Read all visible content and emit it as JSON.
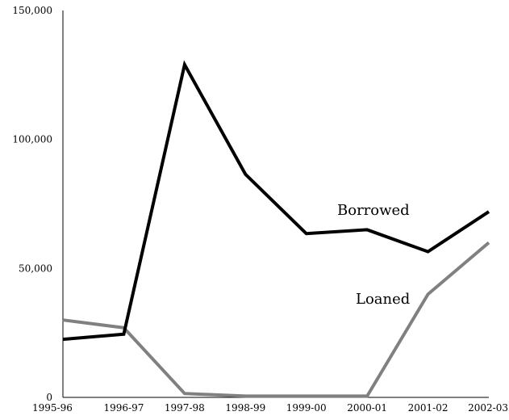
{
  "chart_data": {
    "type": "line",
    "title": "",
    "xlabel": "",
    "ylabel": "",
    "categories": [
      "1995-96",
      "1996-97",
      "1997-98",
      "1998-99",
      "1999-00",
      "2000-01",
      "2001-02",
      "2002-03"
    ],
    "ylim": [
      0,
      150000
    ],
    "yticks": [
      "0",
      "50,000",
      "100,000",
      "150,000"
    ],
    "grid": false,
    "legend": "inline labels",
    "series": [
      {
        "name": "Borrowed",
        "color": "#000000",
        "values": [
          22500,
          24500,
          129000,
          86500,
          63500,
          65000,
          56500,
          72000
        ]
      },
      {
        "name": "Loaned",
        "color": "#808080",
        "values": [
          30000,
          27000,
          1500,
          500,
          500,
          500,
          40000,
          60000
        ]
      }
    ]
  }
}
